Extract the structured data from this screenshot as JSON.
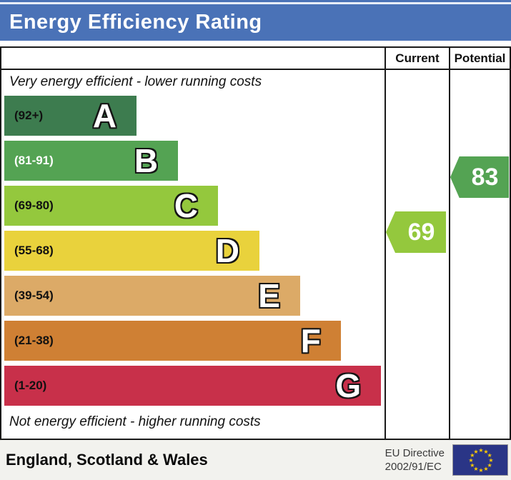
{
  "header": {
    "title": "Energy Efficiency Rating"
  },
  "table": {
    "columns": {
      "current": "Current",
      "potential": "Potential"
    },
    "top_note": "Very energy efficient - lower running costs",
    "bottom_note": "Not energy efficient - higher running costs"
  },
  "footer": {
    "region": "England, Scotland & Wales",
    "directive_line1": "EU Directive",
    "directive_line2": "2002/91/EC",
    "flag": "eu-flag"
  },
  "colors": {
    "header_blue": "#4a72b7",
    "table_border": "#1a1a1a",
    "footer_background": "#f2f2ee",
    "eu_flag_blue": "#2a3586",
    "eu_star_gold": "#ffcc00"
  },
  "chart_data": {
    "type": "bar",
    "title": "Energy Efficiency Rating",
    "orientation": "horizontal",
    "axis_range": [
      1,
      100
    ],
    "grid": false,
    "bands": [
      {
        "letter": "A",
        "range": "(92+)",
        "min": 92,
        "max": 100,
        "color": "#3d7c4f",
        "range_label_color": "#111111",
        "width_pct": 34.8
      },
      {
        "letter": "B",
        "range": "(81-91)",
        "min": 81,
        "max": 91,
        "color": "#54a353",
        "range_label_color": "#ffffff",
        "width_pct": 45.7
      },
      {
        "letter": "C",
        "range": "(69-80)",
        "min": 69,
        "max": 80,
        "color": "#94c83d",
        "range_label_color": "#111111",
        "width_pct": 56.2
      },
      {
        "letter": "D",
        "range": "(55-68)",
        "min": 55,
        "max": 68,
        "color": "#e9d23c",
        "range_label_color": "#111111",
        "width_pct": 67.1
      },
      {
        "letter": "E",
        "range": "(39-54)",
        "min": 39,
        "max": 54,
        "color": "#dcaa67",
        "range_label_color": "#111111",
        "width_pct": 77.8
      },
      {
        "letter": "F",
        "range": "(21-38)",
        "min": 21,
        "max": 38,
        "color": "#cf8034",
        "range_label_color": "#111111",
        "width_pct": 88.5
      },
      {
        "letter": "G",
        "range": "(1-20)",
        "min": 1,
        "max": 20,
        "color": "#c8304a",
        "range_label_color": "#111111",
        "width_pct": 99.1
      }
    ],
    "ratings": [
      {
        "name": "current",
        "label": "Current",
        "value": 69,
        "band": "C",
        "color": "#94c83d"
      },
      {
        "name": "potential",
        "label": "Potential",
        "value": 83,
        "band": "B",
        "color": "#54a353"
      }
    ]
  }
}
